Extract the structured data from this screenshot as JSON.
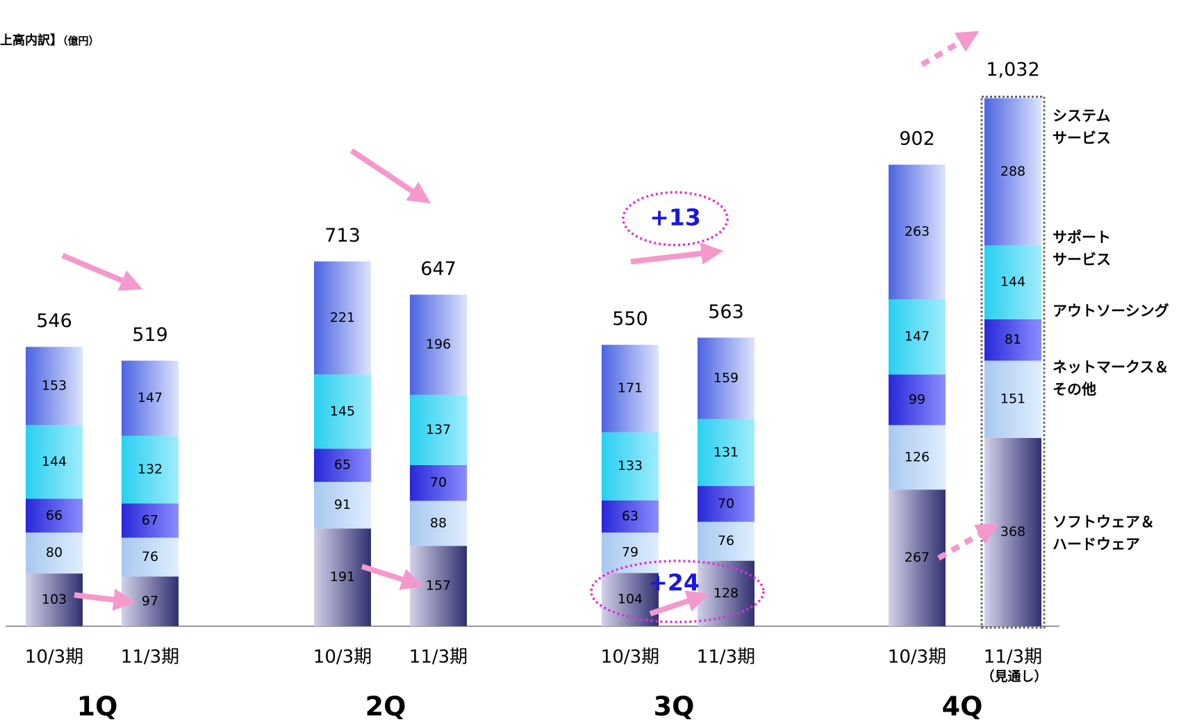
{
  "title": "上高内訳】",
  "unit": "（億円）",
  "chart_data": {
    "type": "bar",
    "stacked": true,
    "quarters": [
      {
        "label": "1Q",
        "bars": [
          {
            "period": "10/3期",
            "total": "546",
            "values": [
              103,
              80,
              66,
              144,
              153
            ]
          },
          {
            "period": "11/3期",
            "total": "519",
            "values": [
              97,
              76,
              67,
              132,
              147
            ]
          }
        ]
      },
      {
        "label": "2Q",
        "bars": [
          {
            "period": "10/3期",
            "total": "713",
            "values": [
              191,
              91,
              65,
              145,
              221
            ]
          },
          {
            "period": "11/3期",
            "total": "647",
            "values": [
              157,
              88,
              70,
              137,
              196
            ]
          }
        ]
      },
      {
        "label": "3Q",
        "bars": [
          {
            "period": "10/3期",
            "total": "550",
            "values": [
              104,
              79,
              63,
              133,
              171
            ]
          },
          {
            "period": "11/3期",
            "total": "563",
            "values": [
              128,
              76,
              70,
              131,
              159
            ]
          }
        ]
      },
      {
        "label": "4Q",
        "bars": [
          {
            "period": "10/3期",
            "total": "902",
            "values": [
              267,
              126,
              99,
              147,
              263
            ]
          },
          {
            "period": "11/3期",
            "period_note": "（見通し）",
            "total": "1,032",
            "values": [
              368,
              151,
              81,
              144,
              288
            ],
            "forecast": true
          }
        ]
      }
    ],
    "series": [
      {
        "name": "ソフトウェア＆\nハードウェア",
        "color_top": "#d2d2ea",
        "color_bottom": "#303070"
      },
      {
        "name": "ネットマークス＆\nその他",
        "color_top": "#a8c8f0",
        "color_bottom": "#e0eeff"
      },
      {
        "name": "アウトソーシング",
        "color_top": "#2828d8",
        "color_bottom": "#8c8cff"
      },
      {
        "name": "サポート\nサービス",
        "color_top": "#28d0f0",
        "color_bottom": "#a0ecfc"
      },
      {
        "name": "システム\nサービス",
        "color_top": "#4c64e0",
        "color_bottom": "#dce4fc"
      }
    ],
    "annotations": [
      "+13",
      "+24"
    ],
    "ylim": [
      0,
      1100
    ]
  },
  "colors": {
    "arrow": "#f598cc",
    "ellipse": "#e030d8",
    "annotation_text": "#1818e0"
  }
}
